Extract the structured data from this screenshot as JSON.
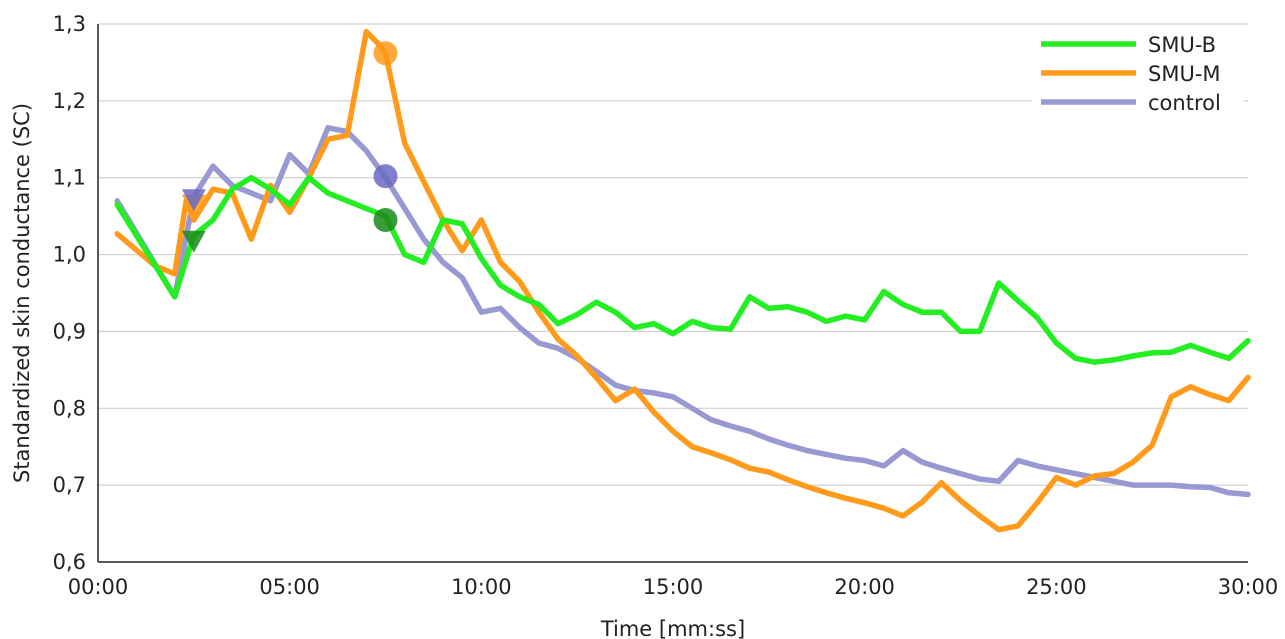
{
  "chart_data": {
    "type": "line",
    "xlabel": "Time [mm:ss]",
    "ylabel": "Standardized skin conductance (SC)",
    "xlim": [
      0,
      30
    ],
    "ylim": [
      0.6,
      1.3
    ],
    "grid": "horizontal",
    "legend_position": "top-right",
    "x_ticks": [
      {
        "value": 0,
        "label": "00:00"
      },
      {
        "value": 5,
        "label": "05:00"
      },
      {
        "value": 10,
        "label": "10:00"
      },
      {
        "value": 15,
        "label": "15:00"
      },
      {
        "value": 20,
        "label": "20:00"
      },
      {
        "value": 25,
        "label": "25:00"
      },
      {
        "value": 30,
        "label": "30:00"
      }
    ],
    "y_ticks": [
      {
        "value": 0.6,
        "label": "0,6"
      },
      {
        "value": 0.7,
        "label": "0,7"
      },
      {
        "value": 0.8,
        "label": "0,8"
      },
      {
        "value": 0.9,
        "label": "0,9"
      },
      {
        "value": 1.0,
        "label": "1,0"
      },
      {
        "value": 1.1,
        "label": "1,1"
      },
      {
        "value": 1.2,
        "label": "1,2"
      },
      {
        "value": 1.3,
        "label": "1,3"
      }
    ],
    "series": [
      {
        "name": "SMU-B",
        "color": "#22ee22",
        "opacity": 1.0,
        "x": [
          0.5,
          2.0,
          2.5,
          3.0,
          3.5,
          4.0,
          4.5,
          5.0,
          5.5,
          6.0,
          6.5,
          7.0,
          7.5,
          8.0,
          8.5,
          9.0,
          9.5,
          10.0,
          10.5,
          11.0,
          11.5,
          12.0,
          12.5,
          13.0,
          13.5,
          14.0,
          14.5,
          15.0,
          15.5,
          16.0,
          16.5,
          17.0,
          17.5,
          18.0,
          18.5,
          19.0,
          19.5,
          20.0,
          20.5,
          21.0,
          21.5,
          22.0,
          22.5,
          23.0,
          23.5,
          24.0,
          24.5,
          25.0,
          25.5,
          26.0,
          26.5,
          27.0,
          27.5,
          28.0,
          28.5,
          29.0,
          29.5,
          30.0
        ],
        "y": [
          1.065,
          0.945,
          1.025,
          1.045,
          1.085,
          1.1,
          1.085,
          1.065,
          1.1,
          1.08,
          1.07,
          1.06,
          1.05,
          1.0,
          0.99,
          1.045,
          1.04,
          0.995,
          0.96,
          0.945,
          0.935,
          0.91,
          0.922,
          0.938,
          0.925,
          0.905,
          0.91,
          0.897,
          0.913,
          0.905,
          0.903,
          0.945,
          0.93,
          0.932,
          0.925,
          0.913,
          0.92,
          0.915,
          0.952,
          0.935,
          0.925,
          0.925,
          0.9,
          0.9,
          0.963,
          0.94,
          0.918,
          0.885,
          0.865,
          0.86,
          0.863,
          0.868,
          0.872,
          0.873,
          0.882,
          0.873,
          0.865,
          0.888
        ]
      },
      {
        "name": "SMU-M",
        "color": "#ff9a1a",
        "opacity": 1.0,
        "x": [
          0.5,
          1.5,
          2.0,
          2.3,
          2.5,
          3.0,
          3.5,
          4.0,
          4.5,
          5.0,
          5.5,
          6.0,
          6.5,
          7.0,
          7.3,
          7.5,
          8.0,
          8.5,
          9.0,
          9.5,
          10.0,
          10.5,
          11.0,
          11.5,
          12.0,
          12.5,
          13.0,
          13.5,
          14.0,
          14.5,
          15.0,
          15.5,
          16.0,
          16.5,
          17.0,
          17.5,
          18.0,
          18.5,
          19.0,
          19.5,
          20.0,
          20.5,
          21.0,
          21.5,
          22.0,
          22.5,
          23.0,
          23.5,
          24.0,
          24.5,
          25.0,
          25.5,
          26.0,
          26.5,
          27.0,
          27.5,
          28.0,
          28.5,
          29.0,
          29.5,
          30.0
        ],
        "y": [
          1.027,
          0.985,
          0.975,
          1.07,
          1.045,
          1.085,
          1.08,
          1.02,
          1.09,
          1.055,
          1.1,
          1.15,
          1.155,
          1.29,
          1.275,
          1.262,
          1.145,
          1.095,
          1.045,
          1.005,
          1.045,
          0.99,
          0.965,
          0.925,
          0.89,
          0.868,
          0.84,
          0.81,
          0.825,
          0.795,
          0.77,
          0.75,
          0.742,
          0.733,
          0.722,
          0.717,
          0.707,
          0.698,
          0.69,
          0.683,
          0.677,
          0.67,
          0.66,
          0.678,
          0.703,
          0.68,
          0.66,
          0.642,
          0.647,
          0.677,
          0.71,
          0.7,
          0.712,
          0.715,
          0.73,
          0.752,
          0.815,
          0.828,
          0.818,
          0.81,
          0.84
        ]
      },
      {
        "name": "control",
        "color": "#9898d2",
        "opacity": 1.0,
        "x": [
          0.5,
          2.0,
          2.5,
          3.0,
          3.5,
          4.0,
          4.5,
          5.0,
          5.5,
          6.0,
          6.5,
          7.0,
          7.5,
          8.0,
          8.5,
          9.0,
          9.5,
          10.0,
          10.5,
          11.0,
          11.5,
          12.0,
          12.5,
          13.0,
          13.5,
          14.0,
          14.5,
          15.0,
          15.5,
          16.0,
          16.5,
          17.0,
          17.5,
          18.0,
          18.5,
          19.0,
          19.5,
          20.0,
          20.5,
          21.0,
          21.5,
          22.0,
          22.5,
          23.0,
          23.5,
          24.0,
          24.5,
          25.0,
          25.5,
          26.0,
          26.5,
          27.0,
          27.5,
          28.0,
          28.5,
          29.0,
          29.5,
          30.0
        ],
        "y": [
          1.07,
          0.945,
          1.075,
          1.115,
          1.09,
          1.08,
          1.07,
          1.13,
          1.105,
          1.165,
          1.16,
          1.135,
          1.1,
          1.06,
          1.02,
          0.99,
          0.97,
          0.925,
          0.93,
          0.905,
          0.885,
          0.878,
          0.865,
          0.848,
          0.83,
          0.823,
          0.82,
          0.815,
          0.8,
          0.785,
          0.777,
          0.77,
          0.76,
          0.752,
          0.745,
          0.74,
          0.735,
          0.732,
          0.725,
          0.745,
          0.73,
          0.722,
          0.715,
          0.708,
          0.705,
          0.732,
          0.725,
          0.72,
          0.715,
          0.71,
          0.705,
          0.7,
          0.7,
          0.7,
          0.698,
          0.697,
          0.69,
          0.688
        ]
      }
    ],
    "markers": [
      {
        "series": "SMU-B",
        "shape": "triangle-down",
        "x": 2.5,
        "y": 1.018,
        "color": "#1a8a1a"
      },
      {
        "series": "SMU-B",
        "shape": "circle",
        "x": 7.5,
        "y": 1.045,
        "color": "#1a8a1a"
      },
      {
        "series": "SMU-M",
        "shape": "triangle-down",
        "x": 2.5,
        "y": 1.065,
        "color": "#ff9a1a"
      },
      {
        "series": "SMU-M",
        "shape": "circle",
        "x": 7.5,
        "y": 1.262,
        "color": "#ff9a1a"
      },
      {
        "series": "control",
        "shape": "triangle-down",
        "x": 2.5,
        "y": 1.072,
        "color": "#6a6ac4"
      },
      {
        "series": "control",
        "shape": "circle",
        "x": 7.5,
        "y": 1.102,
        "color": "#6a6ac4"
      }
    ]
  }
}
